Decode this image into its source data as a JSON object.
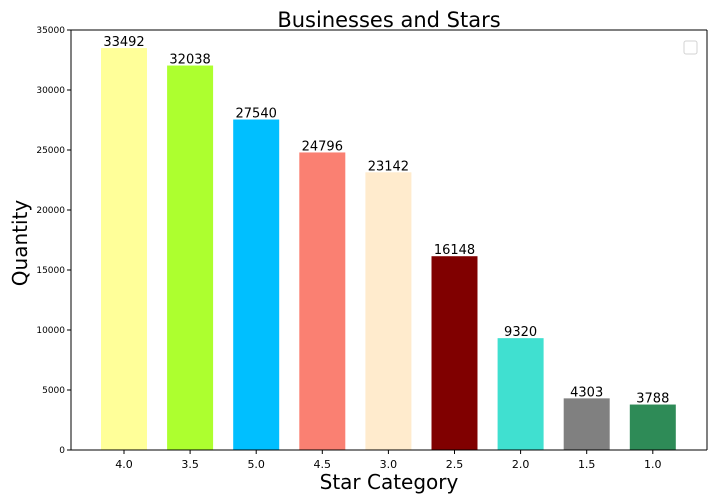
{
  "chart_data": {
    "type": "bar",
    "title": "Businesses and Stars",
    "xlabel": "Star Category",
    "ylabel": "Quantity",
    "categories": [
      "4.0",
      "3.5",
      "5.0",
      "4.5",
      "3.0",
      "2.5",
      "2.0",
      "1.5",
      "1.0"
    ],
    "values": [
      33492,
      32038,
      27540,
      24796,
      23142,
      16148,
      9320,
      4303,
      3788
    ],
    "colors": [
      "#FFFF99",
      "#ADFF2F",
      "#00BFFF",
      "#FA8072",
      "#FFEBCD",
      "#800000",
      "#40E0D0",
      "#808080",
      "#2E8B57"
    ],
    "data_labels": [
      "33492",
      "32038",
      "27540",
      "24796",
      "23142",
      "16148",
      "9320",
      "4303",
      "3788"
    ],
    "yticks": [
      "0",
      "5000",
      "10000",
      "15000",
      "20000",
      "25000",
      "30000",
      "35000"
    ],
    "ylim": [
      0,
      35000
    ],
    "grid": false,
    "legend": "top-right, empty"
  }
}
